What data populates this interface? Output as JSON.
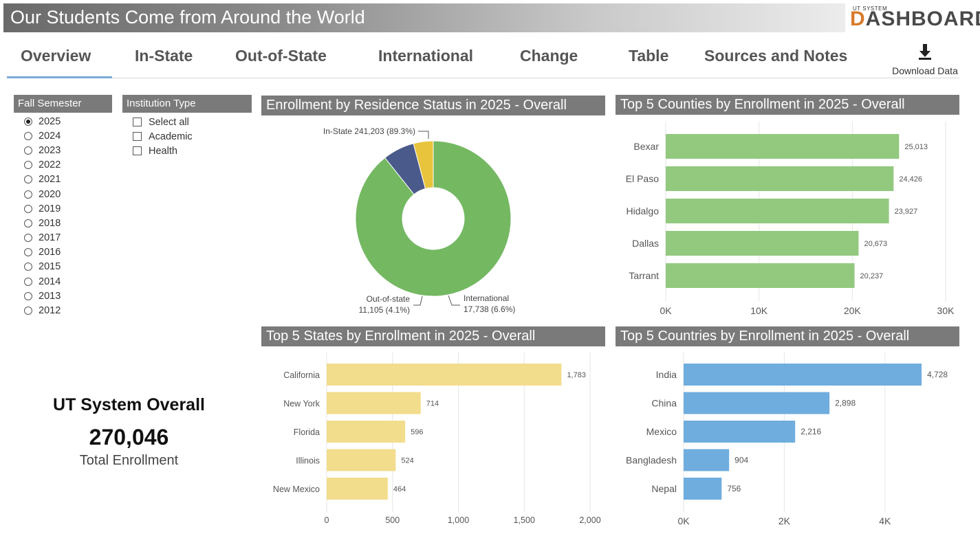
{
  "header": {
    "title": "Our Students Come from Around the World",
    "logo_small": "UT SYSTEM",
    "logo_big_prefix": "D",
    "logo_big_rest": "ASHBOARD"
  },
  "nav": {
    "tabs": [
      "Overview",
      "In-State",
      "Out-of-State",
      "International",
      "Change",
      "Table",
      "Sources and Notes"
    ],
    "active": "Overview",
    "download_label": "Download Data",
    "download_icon": "download-icon"
  },
  "filters": {
    "semester": {
      "title": "Fall Semester",
      "options": [
        "2025",
        "2024",
        "2023",
        "2022",
        "2021",
        "2020",
        "2019",
        "2018",
        "2017",
        "2016",
        "2015",
        "2014",
        "2013",
        "2012"
      ],
      "selected": "2025"
    },
    "institution": {
      "title": "Institution Type",
      "options": [
        "Select all",
        "Academic",
        "Health"
      ]
    }
  },
  "kpi": {
    "title": "UT System Overall",
    "value": "270,046",
    "label": "Total Enrollment"
  },
  "colors": {
    "green": "#74b862",
    "yellow": "#e8c43d",
    "navy": "#4a5a8a",
    "lightgreen": "#92c97f",
    "lightyellow": "#f2dd8d",
    "blue": "#6fadde",
    "header_gray": "#7a7a7a"
  },
  "chart_data": [
    {
      "type": "pie",
      "title": "Enrollment by Residence Status in 2025 - Overall",
      "slices": [
        {
          "name": "In-State",
          "value": 241203,
          "percent": "89.3%",
          "label": "In-State 241,203 (89.3%)",
          "color": "#74b862"
        },
        {
          "name": "International",
          "value": 17738,
          "percent": "6.6%",
          "label_line1": "International",
          "label_line2": "17,738 (6.6%)",
          "color": "#4a5a8a"
        },
        {
          "name": "Out-of-state",
          "value": 11105,
          "percent": "4.1%",
          "label_line1": "Out-of-state",
          "label_line2": "11,105 (4.1%)",
          "color": "#e8c43d"
        }
      ]
    },
    {
      "type": "bar",
      "title": "Top 5 Counties by Enrollment in 2025 - Overall",
      "categories": [
        "Bexar",
        "El Paso",
        "Hidalgo",
        "Dallas",
        "Tarrant"
      ],
      "values": [
        25013,
        24426,
        23927,
        20673,
        20237
      ],
      "value_labels": [
        "25,013",
        "24,426",
        "23,927",
        "20,673",
        "20,237"
      ],
      "xlim": [
        0,
        30000
      ],
      "ticks": [
        0,
        10000,
        20000,
        30000
      ],
      "tick_labels": [
        "0K",
        "10K",
        "20K",
        "30K"
      ],
      "color": "#92c97f"
    },
    {
      "type": "bar",
      "title": "Top 5 States by Enrollment in 2025 - Overall",
      "categories": [
        "California",
        "New York",
        "Florida",
        "Illinois",
        "New Mexico"
      ],
      "values": [
        1783,
        714,
        596,
        524,
        464
      ],
      "value_labels": [
        "1,783",
        "714",
        "596",
        "524",
        "464"
      ],
      "xlim": [
        0,
        2000
      ],
      "ticks": [
        0,
        500,
        1000,
        1500,
        2000
      ],
      "tick_labels": [
        "0",
        "500",
        "1,000",
        "1,500",
        "2,000"
      ],
      "color": "#f2dd8d"
    },
    {
      "type": "bar",
      "title": "Top 5 Countries by Enrollment in 2025 - Overall",
      "categories": [
        "India",
        "China",
        "Mexico",
        "Bangladesh",
        "Nepal"
      ],
      "values": [
        4728,
        2898,
        2216,
        904,
        756
      ],
      "value_labels": [
        "4,728",
        "2,898",
        "2,216",
        "904",
        "756"
      ],
      "xlim": [
        0,
        5000
      ],
      "ticks": [
        0,
        2000,
        4000
      ],
      "tick_labels": [
        "0K",
        "2K",
        "4K"
      ],
      "color": "#6fadde"
    }
  ]
}
